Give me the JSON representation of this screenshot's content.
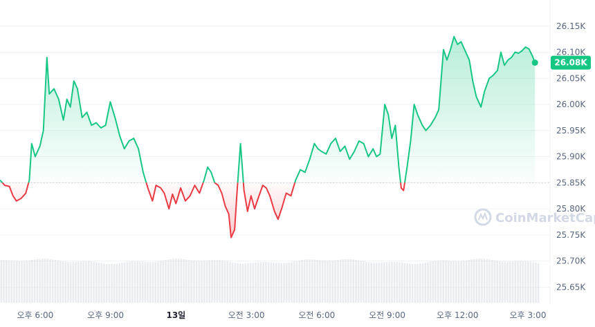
{
  "colors": {
    "up": "#16c784",
    "down": "#ea3943",
    "baseline": "#c9ced6",
    "grid": "#eff2f5",
    "volume": "#d6dae1",
    "axis_text": "#58667e",
    "watermark": "#d3d9e4"
  },
  "watermark": {
    "text": "CoinMarketCap",
    "icon": "coinmarketcap-logo-icon"
  },
  "current_price": {
    "label": "26.08K",
    "value": 26080
  },
  "chart_data": {
    "type": "area",
    "title": "",
    "xlabel": "",
    "ylabel": "",
    "baseline": 25850,
    "ylim": [
      25620,
      26200
    ],
    "y_ticks": [
      {
        "label": "26.15K",
        "value": 26150
      },
      {
        "label": "26.10K",
        "value": 26100
      },
      {
        "label": "26.05K",
        "value": 26050
      },
      {
        "label": "26.00K",
        "value": 26000
      },
      {
        "label": "25.95K",
        "value": 25950
      },
      {
        "label": "25.90K",
        "value": 25900
      },
      {
        "label": "25.85K",
        "value": 25850
      },
      {
        "label": "25.80K",
        "value": 25800
      },
      {
        "label": "25.75K",
        "value": 25750
      },
      {
        "label": "25.70K",
        "value": 25700
      },
      {
        "label": "25.65K",
        "value": 25650
      }
    ],
    "x_range_hours": [
      0,
      23
    ],
    "x_ticks": [
      {
        "label": "오후 6:00",
        "hour": 1.5,
        "bold": false
      },
      {
        "label": "오후 9:00",
        "hour": 4.5,
        "bold": false
      },
      {
        "label": "13일",
        "hour": 7.5,
        "bold": true
      },
      {
        "label": "오전 3:00",
        "hour": 10.5,
        "bold": false
      },
      {
        "label": "오전 6:00",
        "hour": 13.5,
        "bold": false
      },
      {
        "label": "오전 9:00",
        "hour": 16.5,
        "bold": false
      },
      {
        "label": "오후 12:00",
        "hour": 19.5,
        "bold": false
      },
      {
        "label": "오후 3:00",
        "hour": 22.5,
        "bold": false
      }
    ],
    "series": [
      {
        "values": [
          [
            0.0,
            25855
          ],
          [
            0.2,
            25845
          ],
          [
            0.4,
            25843
          ],
          [
            0.55,
            25825
          ],
          [
            0.7,
            25815
          ],
          [
            0.9,
            25820
          ],
          [
            1.1,
            25830
          ],
          [
            1.25,
            25855
          ],
          [
            1.35,
            25925
          ],
          [
            1.5,
            25900
          ],
          [
            1.7,
            25920
          ],
          [
            1.85,
            25950
          ],
          [
            2.0,
            26090
          ],
          [
            2.1,
            26020
          ],
          [
            2.3,
            26030
          ],
          [
            2.5,
            26010
          ],
          [
            2.7,
            25970
          ],
          [
            2.85,
            26010
          ],
          [
            3.0,
            25995
          ],
          [
            3.15,
            26045
          ],
          [
            3.3,
            26030
          ],
          [
            3.5,
            25975
          ],
          [
            3.7,
            25985
          ],
          [
            3.9,
            25960
          ],
          [
            4.1,
            25965
          ],
          [
            4.3,
            25955
          ],
          [
            4.5,
            25960
          ],
          [
            4.7,
            26005
          ],
          [
            4.9,
            25975
          ],
          [
            5.1,
            25940
          ],
          [
            5.3,
            25915
          ],
          [
            5.5,
            25930
          ],
          [
            5.7,
            25935
          ],
          [
            5.9,
            25915
          ],
          [
            6.1,
            25870
          ],
          [
            6.3,
            25840
          ],
          [
            6.5,
            25815
          ],
          [
            6.65,
            25845
          ],
          [
            6.85,
            25840
          ],
          [
            7.0,
            25830
          ],
          [
            7.2,
            25800
          ],
          [
            7.35,
            25828
          ],
          [
            7.5,
            25810
          ],
          [
            7.7,
            25840
          ],
          [
            7.9,
            25815
          ],
          [
            8.1,
            25825
          ],
          [
            8.3,
            25845
          ],
          [
            8.5,
            25830
          ],
          [
            8.7,
            25855
          ],
          [
            8.85,
            25880
          ],
          [
            9.0,
            25870
          ],
          [
            9.15,
            25850
          ],
          [
            9.3,
            25845
          ],
          [
            9.45,
            25830
          ],
          [
            9.6,
            25805
          ],
          [
            9.75,
            25790
          ],
          [
            9.85,
            25745
          ],
          [
            10.0,
            25760
          ],
          [
            10.1,
            25830
          ],
          [
            10.25,
            25925
          ],
          [
            10.4,
            25835
          ],
          [
            10.55,
            25795
          ],
          [
            10.7,
            25825
          ],
          [
            10.85,
            25800
          ],
          [
            11.0,
            25820
          ],
          [
            11.2,
            25845
          ],
          [
            11.35,
            25840
          ],
          [
            11.5,
            25825
          ],
          [
            11.7,
            25795
          ],
          [
            11.85,
            25780
          ],
          [
            12.0,
            25800
          ],
          [
            12.2,
            25830
          ],
          [
            12.4,
            25825
          ],
          [
            12.6,
            25855
          ],
          [
            12.8,
            25875
          ],
          [
            13.0,
            25870
          ],
          [
            13.2,
            25895
          ],
          [
            13.4,
            25925
          ],
          [
            13.55,
            25915
          ],
          [
            13.7,
            25910
          ],
          [
            13.9,
            25905
          ],
          [
            14.1,
            25925
          ],
          [
            14.3,
            25935
          ],
          [
            14.5,
            25910
          ],
          [
            14.7,
            25920
          ],
          [
            14.9,
            25895
          ],
          [
            15.1,
            25910
          ],
          [
            15.3,
            25930
          ],
          [
            15.5,
            25925
          ],
          [
            15.7,
            25900
          ],
          [
            15.9,
            25915
          ],
          [
            16.05,
            25900
          ],
          [
            16.2,
            25905
          ],
          [
            16.4,
            26000
          ],
          [
            16.55,
            25980
          ],
          [
            16.7,
            25935
          ],
          [
            16.85,
            25960
          ],
          [
            17.0,
            25880
          ],
          [
            17.1,
            25840
          ],
          [
            17.2,
            25835
          ],
          [
            17.35,
            25880
          ],
          [
            17.5,
            25930
          ],
          [
            17.65,
            26000
          ],
          [
            17.8,
            25980
          ],
          [
            18.0,
            25960
          ],
          [
            18.15,
            25950
          ],
          [
            18.35,
            25960
          ],
          [
            18.55,
            25975
          ],
          [
            18.7,
            25990
          ],
          [
            18.9,
            26105
          ],
          [
            19.05,
            26085
          ],
          [
            19.2,
            26105
          ],
          [
            19.35,
            26130
          ],
          [
            19.5,
            26115
          ],
          [
            19.65,
            26120
          ],
          [
            19.85,
            26100
          ],
          [
            20.0,
            26085
          ],
          [
            20.15,
            26045
          ],
          [
            20.3,
            26015
          ],
          [
            20.5,
            25995
          ],
          [
            20.65,
            26025
          ],
          [
            20.85,
            26050
          ],
          [
            21.0,
            26055
          ],
          [
            21.2,
            26065
          ],
          [
            21.35,
            26100
          ],
          [
            21.5,
            26075
          ],
          [
            21.65,
            26085
          ],
          [
            21.8,
            26090
          ],
          [
            21.95,
            26100
          ],
          [
            22.1,
            26098
          ],
          [
            22.25,
            26103
          ],
          [
            22.4,
            26110
          ],
          [
            22.55,
            26106
          ],
          [
            22.7,
            26092
          ],
          [
            22.8,
            26080
          ]
        ]
      }
    ],
    "volume_bar_count": 210
  }
}
